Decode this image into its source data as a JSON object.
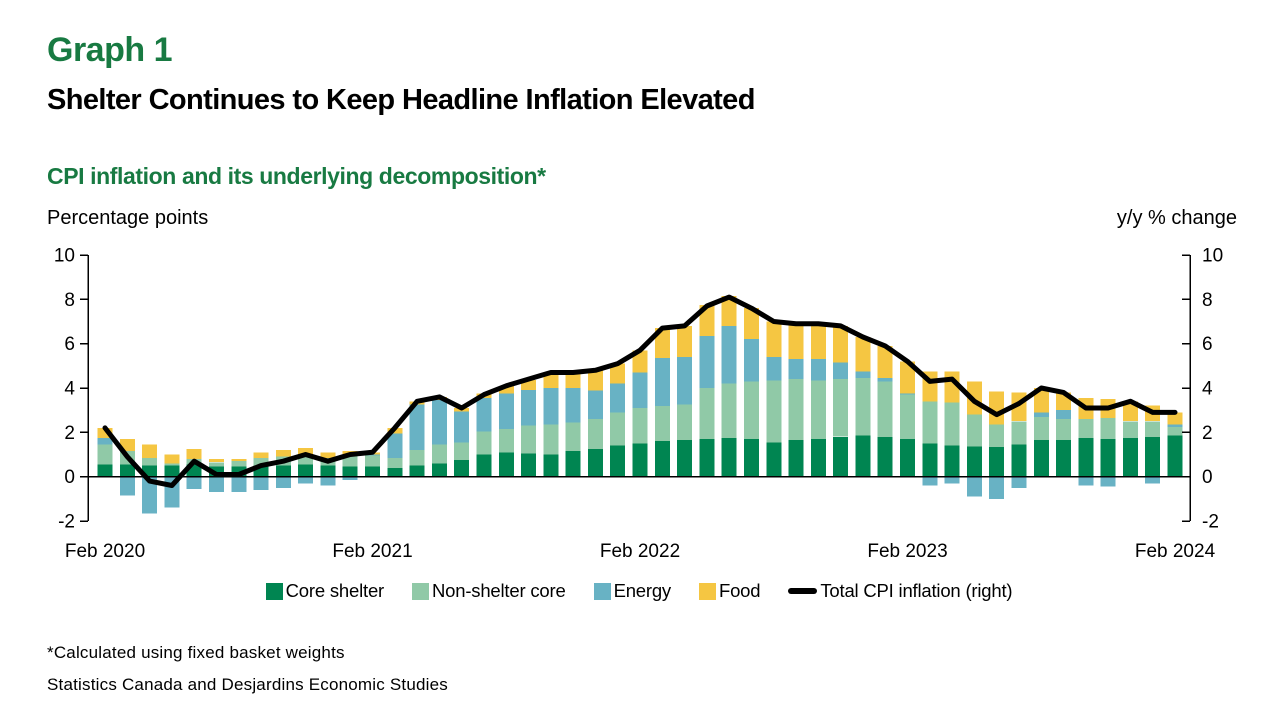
{
  "header": {
    "graph_label": "Graph 1",
    "title": "Shelter Continues to Keep Headline Inflation Elevated",
    "subtitle": "CPI inflation and its underlying decomposition*",
    "left_axis_title": "Percentage points",
    "right_axis_title": "y/y % change"
  },
  "footnotes": {
    "note": "*Calculated using fixed basket weights",
    "source": "Statistics Canada and Desjardins Economic Studies"
  },
  "colors": {
    "title_green": "#187a42",
    "core_shelter": "#008551",
    "non_shelter_core": "#90c9a7",
    "energy": "#68b2c4",
    "food": "#f5c642",
    "cpi_line": "#000000",
    "axis": "#000000"
  },
  "chart_data": {
    "type": "bar",
    "subtype": "stacked-bars-with-line-overlay",
    "title": "CPI inflation and its underlying decomposition*",
    "xlabel": "",
    "ylabel_left": "Percentage points",
    "ylabel_right": "y/y % change",
    "ylim": [
      -2,
      10
    ],
    "yticks": [
      10,
      8,
      6,
      4,
      2,
      0,
      -2
    ],
    "grid": "off",
    "legend_position": "bottom-center",
    "months": [
      "Feb 2020",
      "Mar 2020",
      "Apr 2020",
      "May 2020",
      "Jun 2020",
      "Jul 2020",
      "Aug 2020",
      "Sep 2020",
      "Oct 2020",
      "Nov 2020",
      "Dec 2020",
      "Jan 2021",
      "Feb 2021",
      "Mar 2021",
      "Apr 2021",
      "May 2021",
      "Jun 2021",
      "Jul 2021",
      "Aug 2021",
      "Sep 2021",
      "Oct 2021",
      "Nov 2021",
      "Dec 2021",
      "Jan 2022",
      "Feb 2022",
      "Mar 2022",
      "Apr 2022",
      "May 2022",
      "Jun 2022",
      "Jul 2022",
      "Aug 2022",
      "Sep 2022",
      "Oct 2022",
      "Nov 2022",
      "Dec 2022",
      "Jan 2023",
      "Feb 2023",
      "Mar 2023",
      "Apr 2023",
      "May 2023",
      "Jun 2023",
      "Jul 2023",
      "Aug 2023",
      "Sep 2023",
      "Oct 2023",
      "Nov 2023",
      "Dec 2023",
      "Jan 2024",
      "Feb 2024"
    ],
    "x_ticks": [
      {
        "index": 0,
        "label": "Feb 2020"
      },
      {
        "index": 12,
        "label": "Feb 2021"
      },
      {
        "index": 24,
        "label": "Feb 2022"
      },
      {
        "index": 36,
        "label": "Feb 2023"
      },
      {
        "index": 48,
        "label": "Feb 2024"
      }
    ],
    "series": [
      {
        "name": "Core shelter",
        "color": "#008551",
        "values": [
          0.55,
          0.55,
          0.5,
          0.5,
          0.55,
          0.45,
          0.45,
          0.5,
          0.5,
          0.55,
          0.5,
          0.45,
          0.45,
          0.4,
          0.5,
          0.6,
          0.75,
          1.0,
          1.1,
          1.05,
          1.0,
          1.15,
          1.25,
          1.4,
          1.5,
          1.6,
          1.65,
          1.7,
          1.75,
          1.7,
          1.55,
          1.65,
          1.7,
          1.8,
          1.85,
          1.8,
          1.7,
          1.5,
          1.4,
          1.35,
          1.35,
          1.45,
          1.65,
          1.65,
          1.75,
          1.7,
          1.75,
          1.8,
          1.85
        ]
      },
      {
        "name": "Non-shelter core",
        "color": "#90c9a7",
        "values": [
          0.9,
          0.6,
          0.35,
          0.1,
          0.25,
          0.2,
          0.25,
          0.35,
          0.4,
          0.45,
          0.35,
          0.5,
          0.5,
          0.45,
          0.7,
          0.85,
          0.8,
          1.05,
          1.05,
          1.25,
          1.35,
          1.3,
          1.35,
          1.5,
          1.6,
          1.6,
          1.6,
          2.3,
          2.45,
          2.6,
          2.8,
          2.75,
          2.65,
          2.6,
          2.6,
          2.5,
          2.0,
          1.9,
          1.95,
          1.45,
          1.0,
          1.05,
          1.05,
          0.95,
          0.85,
          0.95,
          0.75,
          0.7,
          0.4
        ]
      },
      {
        "name": "Energy",
        "color": "#68b2c4",
        "values": [
          0.3,
          -0.85,
          -1.65,
          -1.4,
          -0.55,
          -0.7,
          -0.7,
          -0.6,
          -0.5,
          -0.3,
          -0.4,
          -0.15,
          0.05,
          1.1,
          2.05,
          2.0,
          1.4,
          1.5,
          1.6,
          1.6,
          1.65,
          1.55,
          1.3,
          1.3,
          1.6,
          2.15,
          2.15,
          2.35,
          2.6,
          1.9,
          1.05,
          0.9,
          0.95,
          0.75,
          0.3,
          0.15,
          0.05,
          -0.4,
          -0.3,
          -0.9,
          -1.0,
          -0.5,
          0.2,
          0.4,
          -0.4,
          -0.45,
          0.0,
          -0.3,
          0.1
        ]
      },
      {
        "name": "Food",
        "color": "#f5c642",
        "values": [
          0.45,
          0.55,
          0.6,
          0.4,
          0.45,
          0.15,
          0.1,
          0.25,
          0.3,
          0.3,
          0.25,
          0.2,
          0.1,
          0.25,
          0.15,
          0.15,
          0.15,
          0.2,
          0.35,
          0.45,
          0.7,
          0.7,
          0.9,
          0.9,
          1.0,
          1.35,
          1.4,
          1.4,
          1.35,
          1.4,
          1.6,
          1.7,
          1.6,
          1.65,
          1.55,
          1.45,
          1.45,
          1.35,
          1.4,
          1.5,
          1.5,
          1.3,
          1.1,
          0.8,
          0.95,
          0.85,
          0.9,
          0.7,
          0.55
        ]
      }
    ],
    "line": {
      "name": "Total CPI inflation (right)",
      "color": "#000000",
      "axis": "right",
      "values": [
        2.2,
        0.9,
        -0.2,
        -0.4,
        0.7,
        0.1,
        0.1,
        0.5,
        0.7,
        1.0,
        0.7,
        1.0,
        1.1,
        2.2,
        3.4,
        3.6,
        3.1,
        3.7,
        4.1,
        4.4,
        4.7,
        4.7,
        4.8,
        5.1,
        5.7,
        6.7,
        6.8,
        7.7,
        8.1,
        7.6,
        7.0,
        6.9,
        6.9,
        6.8,
        6.3,
        5.9,
        5.2,
        4.3,
        4.4,
        3.4,
        2.8,
        3.3,
        4.0,
        3.8,
        3.1,
        3.1,
        3.4,
        2.9,
        2.9
      ]
    }
  }
}
